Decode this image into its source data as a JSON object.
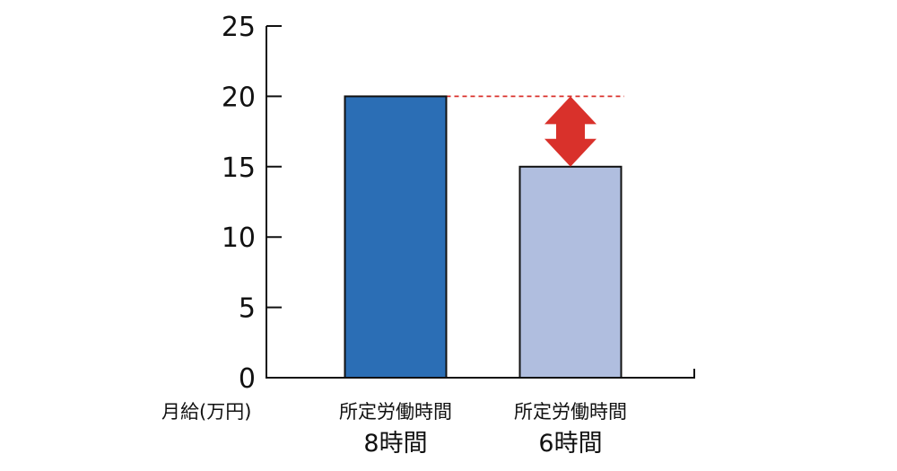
{
  "chart_data": {
    "type": "bar",
    "unit_label": "月給(万円)",
    "ylim": [
      0,
      25
    ],
    "yticks": [
      0,
      5,
      10,
      15,
      20,
      25
    ],
    "categories": [
      {
        "line1": "所定労働時間",
        "line2": "8時間"
      },
      {
        "line1": "所定労働時間",
        "line2": "6時間"
      }
    ],
    "values": [
      20,
      15
    ],
    "bar_colors": [
      "#2b6eb5",
      "#b0bedf"
    ],
    "difference_marker": {
      "from_value": 20,
      "to_value": 15,
      "line_color": "#d9312b",
      "arrow_color": "#d9312b"
    },
    "grid": false
  }
}
